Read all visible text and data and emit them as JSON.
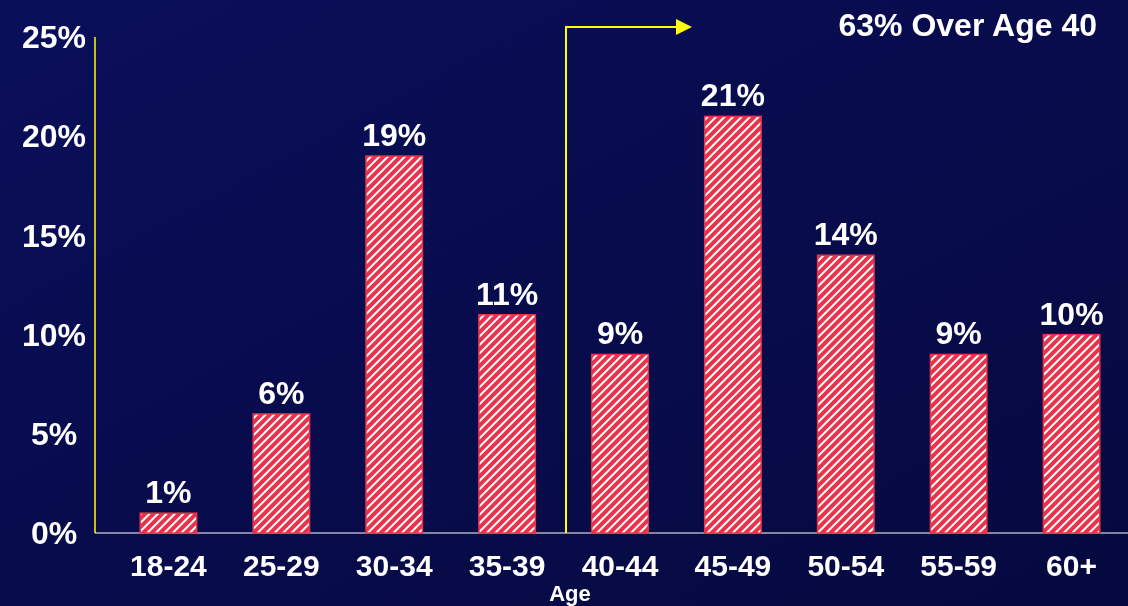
{
  "chart_data": {
    "type": "bar",
    "xlabel": "Age",
    "categories": [
      "18-24",
      "25-29",
      "30-34",
      "35-39",
      "40-44",
      "45-49",
      "50-54",
      "55-59",
      "60+"
    ],
    "values": [
      1,
      6,
      19,
      11,
      9,
      21,
      14,
      9,
      10
    ],
    "color": "#e8334a",
    "value_labels": [
      "1%",
      "6%",
      "19%",
      "11%",
      "9%",
      "21%",
      "14%",
      "9%",
      "10%"
    ],
    "ylim": [
      0,
      25
    ],
    "yticks": [
      {
        "value": 0,
        "label": "0%"
      },
      {
        "value": 5,
        "label": "5%"
      },
      {
        "value": 10,
        "label": "10%"
      },
      {
        "value": 15,
        "label": "15%"
      },
      {
        "value": 20,
        "label": "20%"
      },
      {
        "value": 25,
        "label": "25%"
      }
    ],
    "annotations": [
      "63% Over Age 40"
    ],
    "grid": false
  }
}
